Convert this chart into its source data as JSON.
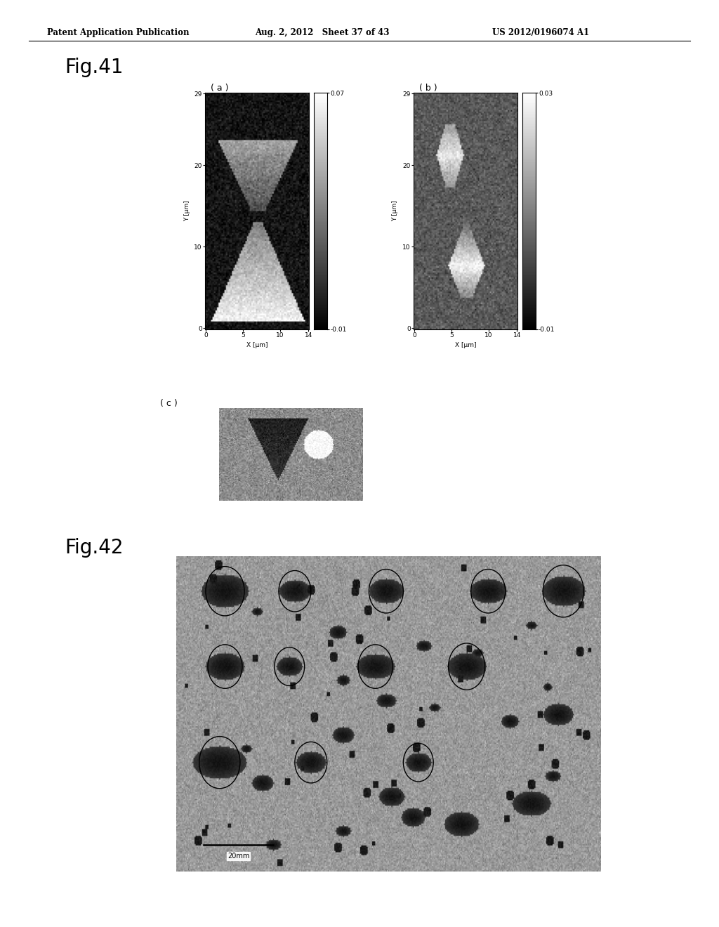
{
  "header_left": "Patent Application Publication",
  "header_mid": "Aug. 2, 2012   Sheet 37 of 43",
  "header_right": "US 2012/0196074 A1",
  "fig41_label": "Fig.41",
  "fig42_label": "Fig.42",
  "sub_a_label": "( a )",
  "sub_b_label": "( b )",
  "sub_c_label": "( c )",
  "colorbar_a_max": "0.07",
  "colorbar_a_min": "-0.01",
  "colorbar_b_max": "0.03",
  "colorbar_b_min": "-0.01",
  "xlabel_a": "X [μm]",
  "ylabel_a": "Y [μm]",
  "xlabel_b": "X [μm]",
  "ylabel_b": "Y [μm]",
  "scalebar_label": "20mm",
  "bg_color": "#ffffff"
}
